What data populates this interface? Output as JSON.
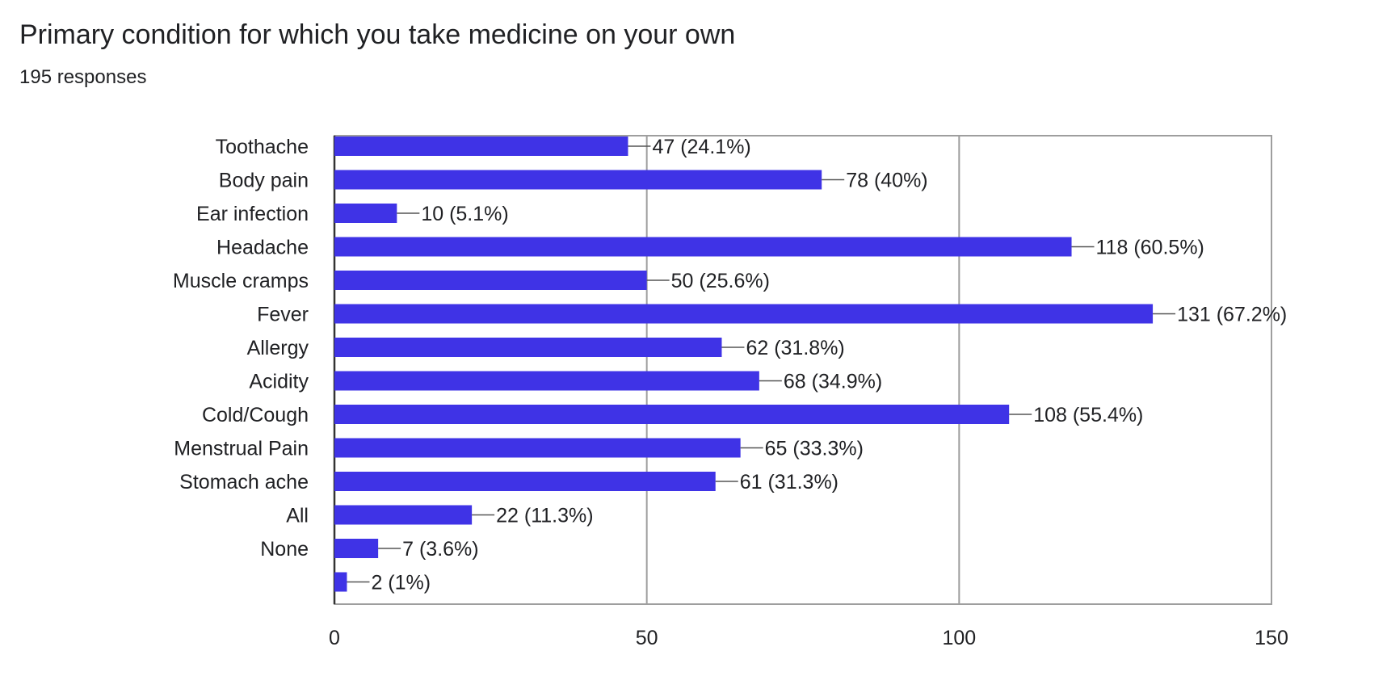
{
  "chart_data": {
    "type": "bar",
    "orientation": "horizontal",
    "title": "Primary condition for which you take medicine on your own",
    "subtitle": "195 responses",
    "xlabel": "",
    "ylabel": "",
    "xlim": [
      0,
      150
    ],
    "xticks": [
      0,
      50,
      100,
      150
    ],
    "grid": true,
    "legend": "none",
    "bar_color": "#3f33e6",
    "categories": [
      "Toothache",
      "Body pain",
      "Ear infection",
      "Headache",
      "Muscle cramps",
      "Fever",
      "Allergy",
      "Acidity",
      "Cold/Cough",
      "Menstrual Pain",
      "Stomach ache",
      "All",
      "None",
      ""
    ],
    "values": [
      47,
      78,
      10,
      118,
      50,
      131,
      62,
      68,
      108,
      65,
      61,
      22,
      7,
      2
    ],
    "data_labels": [
      "47 (24.1%)",
      "78 (40%)",
      "10 (5.1%)",
      "118 (60.5%)",
      "50 (25.6%)",
      "131 (67.2%)",
      "62 (31.8%)",
      "68 (34.9%)",
      "108 (55.4%)",
      "65 (33.3%)",
      "61 (31.3%)",
      "22 (11.3%)",
      "7 (3.6%)",
      "2 (1%)"
    ]
  }
}
